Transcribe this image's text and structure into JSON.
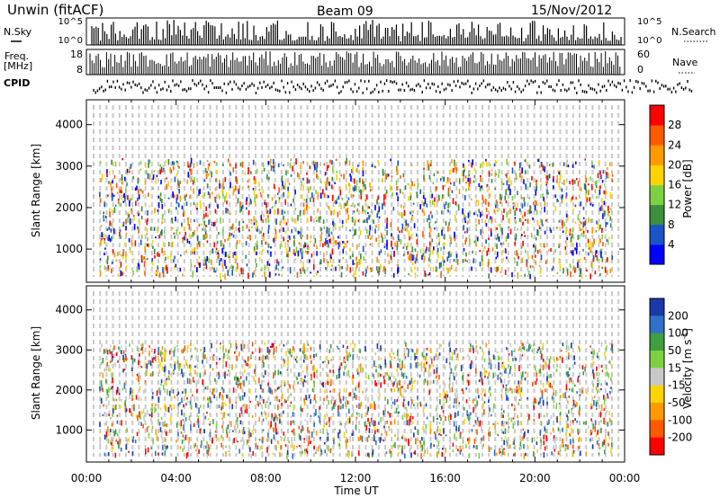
{
  "header": {
    "title": "Unwin (fitACF)",
    "beam": "Beam 09",
    "date": "15/Nov/2012"
  },
  "summary_panels": {
    "nsky_label": "N.Sky",
    "nsky_ticks": [
      "10^5",
      "10^0"
    ],
    "nsearch_label": "N.Search",
    "nsearch_ticks": [
      "10^5",
      "10^0"
    ],
    "freq_label": "Freq.",
    "freq_unit": "[MHz]",
    "freq_ticks": [
      "18",
      "8"
    ],
    "nave_label": "Nave",
    "nave_ticks": [
      "60",
      "0"
    ],
    "cpid_label": "CPID"
  },
  "chart_data": [
    {
      "type": "heatmap",
      "name": "power",
      "ylabel": "Slant Range [km]",
      "ylim": [
        200,
        4600
      ],
      "yticks": [
        "1000",
        "2000",
        "3000",
        "4000"
      ],
      "xlim": [
        "00:00",
        "24:00"
      ],
      "colorbar_label": "Power [dB]",
      "colorbar_ticks": [
        "4",
        "8",
        "12",
        "16",
        "20",
        "24",
        "28"
      ],
      "colorbar_colors": [
        "#0000ff",
        "#1a55c8",
        "#3c8f3c",
        "#7fd040",
        "#ffd400",
        "#ff9a00",
        "#ff5a00",
        "#ff0000"
      ],
      "grid": true
    },
    {
      "type": "heatmap",
      "name": "velocity",
      "ylabel": "Slant Range [km]",
      "ylim": [
        200,
        4600
      ],
      "yticks": [
        "1000",
        "2000",
        "3000",
        "4000"
      ],
      "xlim": [
        "00:00",
        "24:00"
      ],
      "colorbar_label": "Velocity [m s",
      "colorbar_label_sup": "-1",
      "colorbar_label_end": "]",
      "colorbar_ticks": [
        "200",
        "100",
        "50",
        "15",
        "-15",
        "-50",
        "-100",
        "-200"
      ],
      "colorbar_colors": [
        "#1a3aa8",
        "#2f72c8",
        "#3f9f3f",
        "#7fd040",
        "#c8c8c8",
        "#ffd400",
        "#ff9a00",
        "#ff5a00",
        "#ff0000"
      ],
      "grid": true
    }
  ],
  "x_axis": {
    "ticks": [
      "00:00",
      "04:00",
      "08:00",
      "12:00",
      "16:00",
      "20:00",
      "00:00"
    ],
    "label": "Time UT"
  }
}
